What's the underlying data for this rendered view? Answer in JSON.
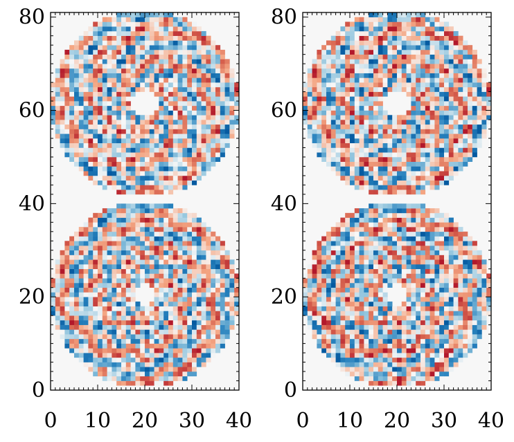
{
  "chart_data": [
    {
      "type": "heatmap",
      "title": "",
      "xlabel": "",
      "ylabel": "",
      "xlim": [
        0,
        40
      ],
      "ylim": [
        0,
        81
      ],
      "x_ticks": [
        "0",
        "10",
        "20",
        "30",
        "40"
      ],
      "y_ticks": [
        "0",
        "20",
        "40",
        "60",
        "80"
      ],
      "grid": false,
      "colormap": "diverging red-white-blue (RdBu)",
      "background_color": "#f7f7f7",
      "pixel_grid": [
        40,
        81
      ],
      "pupils": [
        {
          "center": [
            20,
            20.5
          ],
          "outer_radius": 20,
          "inner_radius": 2.5
        },
        {
          "center": [
            20,
            61.5
          ],
          "outer_radius": 20,
          "inner_radius": 3.0
        }
      ]
    },
    {
      "type": "heatmap",
      "title": "",
      "xlabel": "",
      "ylabel": "",
      "xlim": [
        0,
        40
      ],
      "ylim": [
        0,
        81
      ],
      "x_ticks": [
        "0",
        "10",
        "20",
        "30",
        "40"
      ],
      "y_ticks": [
        "0",
        "20",
        "40",
        "60",
        "80"
      ],
      "grid": false,
      "colormap": "diverging red-white-blue (RdBu)",
      "background_color": "#f7f7f7",
      "pixel_grid": [
        40,
        81
      ],
      "pupils": [
        {
          "center": [
            20,
            20.5
          ],
          "outer_radius": 20,
          "inner_radius": 2.5
        },
        {
          "center": [
            20,
            61.5
          ],
          "outer_radius": 20,
          "inner_radius": 3.0
        }
      ]
    }
  ]
}
